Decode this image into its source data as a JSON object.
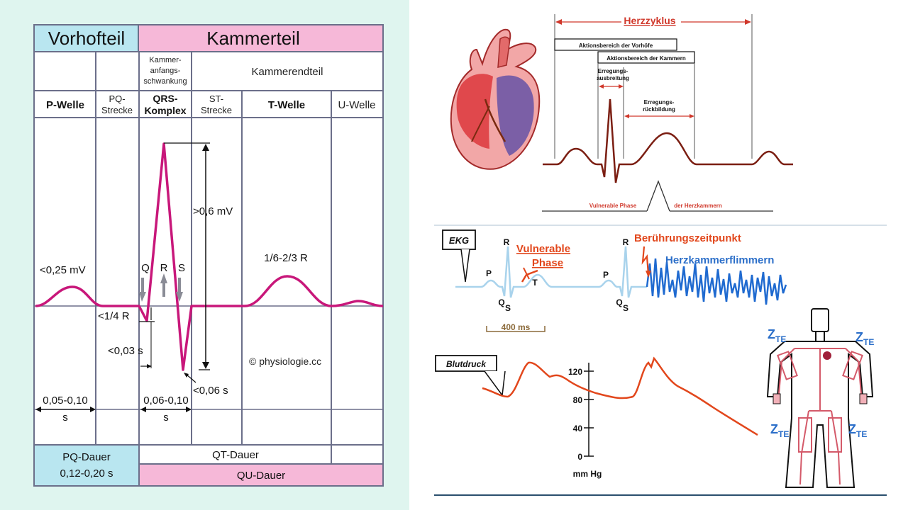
{
  "colors": {
    "left_bg": "#dff5ef",
    "cyan_header": "#b9e6f0",
    "pink_header": "#f6b8d8",
    "ecg_magenta": "#c8177a",
    "grid": "#6b6f8a",
    "heart_red": "#d9363e",
    "heart_purple": "#7b5fa6",
    "ecg_dark_red": "#7b1e12",
    "orange": "#e2471c",
    "light_blue_ecg": "#a9d3ec",
    "fibrillation_blue": "#1f6ad0",
    "text_red": "#d0382b",
    "blue_text": "#2c6fc9"
  },
  "left_chart": {
    "header": {
      "atrial": "Vorhofteil",
      "ventricular": "Kammerteil"
    },
    "row2": {
      "initial_line1": "Kammer-",
      "initial_line2": "anfangs-",
      "initial_line3": "schwankung",
      "final": "Kammerendteil"
    },
    "segments": {
      "p_wave": "P-Welle",
      "pq_line1": "PQ-",
      "pq_line2": "Strecke",
      "qrs_line1": "QRS-",
      "qrs_line2": "Komplex",
      "st_line1": "ST-",
      "st_line2": "Strecke",
      "t_wave": "T-Welle",
      "u_wave": "U-Welle"
    },
    "annotations": {
      "p_amp": "<0,25 mV",
      "q": "Q",
      "r": "R",
      "s": "S",
      "r_amp": ">0,6 mV",
      "t_amp": "1/6-2/3 R",
      "q_depth": "<1/4 R",
      "q_dur": "<0,03 s",
      "s_dur": "<0,06 s",
      "copyright": "© physiologie.cc",
      "p_dur_val": "0,05-0,10",
      "p_dur_unit": "s",
      "qrs_dur_val": "0,06-0,10",
      "qrs_dur_unit": "s"
    },
    "footer": {
      "pq_title": "PQ-Dauer",
      "pq_value": "0,12-0,20 s",
      "qt": "QT-Dauer",
      "qu": "QU-Dauer"
    }
  },
  "cycle_diagram": {
    "title": "Herzzyklus",
    "atria_range": "Aktionsbereich der Vorhöfe",
    "ventricle_range": "Aktionsbereich der Kammern",
    "exc_spread_line1": "Erregungs-",
    "exc_spread_line2": "ausbreitung",
    "exc_recovery_line1": "Erregungs-",
    "exc_recovery_line2": "rückbildung",
    "vulnerable": "Vulnerable Phase",
    "chambers": "der Herzkammern"
  },
  "fibrillation": {
    "ekg_label": "EKG",
    "vulnerable_line1": "Vulnerable",
    "vulnerable_line2": "Phase",
    "touch_label": "Berührungszeitpunkt",
    "fibrillation_label": "Herzkammerflimmern",
    "p": "P",
    "r": "R",
    "t": "T",
    "q": "Q",
    "s": "S",
    "p2": "P",
    "r2": "R",
    "q2": "Q",
    "s2": "S",
    "time_scale": "400 ms",
    "bp_label": "Blutdruck",
    "axis_unit": "mm Hg",
    "ticks": [
      "120",
      "80",
      "40",
      "0"
    ]
  },
  "body_figure": {
    "z_label": "Z",
    "z_sub": "TE"
  }
}
